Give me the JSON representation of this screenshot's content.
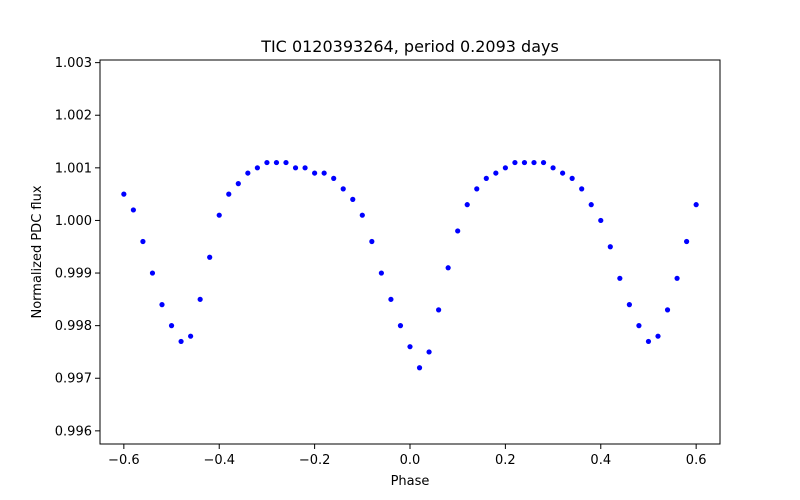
{
  "chart_data": {
    "type": "scatter",
    "title": "TIC 0120393264, period 0.2093 days",
    "xlabel": "Phase",
    "ylabel": "Normalized PDC flux",
    "xlim": [
      -0.65,
      0.65
    ],
    "ylim": [
      0.99575,
      1.00305
    ],
    "xticks": [
      -0.6,
      -0.4,
      -0.2,
      0.0,
      0.2,
      0.4,
      0.6
    ],
    "xtick_labels": [
      "−0.6",
      "−0.4",
      "−0.2",
      "0.0",
      "0.2",
      "0.4",
      "0.6"
    ],
    "yticks": [
      0.996,
      0.997,
      0.998,
      0.999,
      1.0,
      1.001,
      1.002,
      1.003
    ],
    "ytick_labels": [
      "0.996",
      "0.997",
      "0.998",
      "0.999",
      "1.000",
      "1.001",
      "1.002",
      "1.003"
    ],
    "marker_color": "#0000ff",
    "grid": false,
    "series": [
      {
        "name": "flux",
        "x": [
          -0.6,
          -0.58,
          -0.56,
          -0.54,
          -0.52,
          -0.5,
          -0.48,
          -0.46,
          -0.44,
          -0.42,
          -0.4,
          -0.38,
          -0.36,
          -0.34,
          -0.32,
          -0.3,
          -0.28,
          -0.26,
          -0.24,
          -0.22,
          -0.2,
          -0.18,
          -0.16,
          -0.14,
          -0.12,
          -0.1,
          -0.08,
          -0.06,
          -0.04,
          -0.02,
          0.0,
          0.02,
          0.04,
          0.06,
          0.08,
          0.1,
          0.12,
          0.14,
          0.16,
          0.18,
          0.2,
          0.22,
          0.24,
          0.26,
          0.28,
          0.3,
          0.32,
          0.34,
          0.36,
          0.38,
          0.4,
          0.42,
          0.44,
          0.46,
          0.48,
          0.5,
          0.52,
          0.54,
          0.56,
          0.58,
          0.6
        ],
        "y": [
          1.0005,
          1.0002,
          0.9996,
          0.999,
          0.9984,
          0.998,
          0.9977,
          0.9978,
          0.9985,
          0.9993,
          1.0001,
          1.0005,
          1.0007,
          1.0009,
          1.001,
          1.0011,
          1.0011,
          1.0011,
          1.001,
          1.001,
          1.0009,
          1.0009,
          1.0008,
          1.0006,
          1.0004,
          1.0001,
          0.9996,
          0.999,
          0.9985,
          0.998,
          0.9976,
          0.9972,
          0.9975,
          0.9983,
          0.9991,
          0.9998,
          1.0003,
          1.0006,
          1.0008,
          1.0009,
          1.001,
          1.0011,
          1.0011,
          1.0011,
          1.0011,
          1.001,
          1.0009,
          1.0008,
          1.0006,
          1.0003,
          1.0,
          0.9995,
          0.9989,
          0.9984,
          0.998,
          0.9977,
          0.9978,
          0.9983,
          0.9989,
          0.9996,
          1.0003
        ]
      }
    ]
  }
}
